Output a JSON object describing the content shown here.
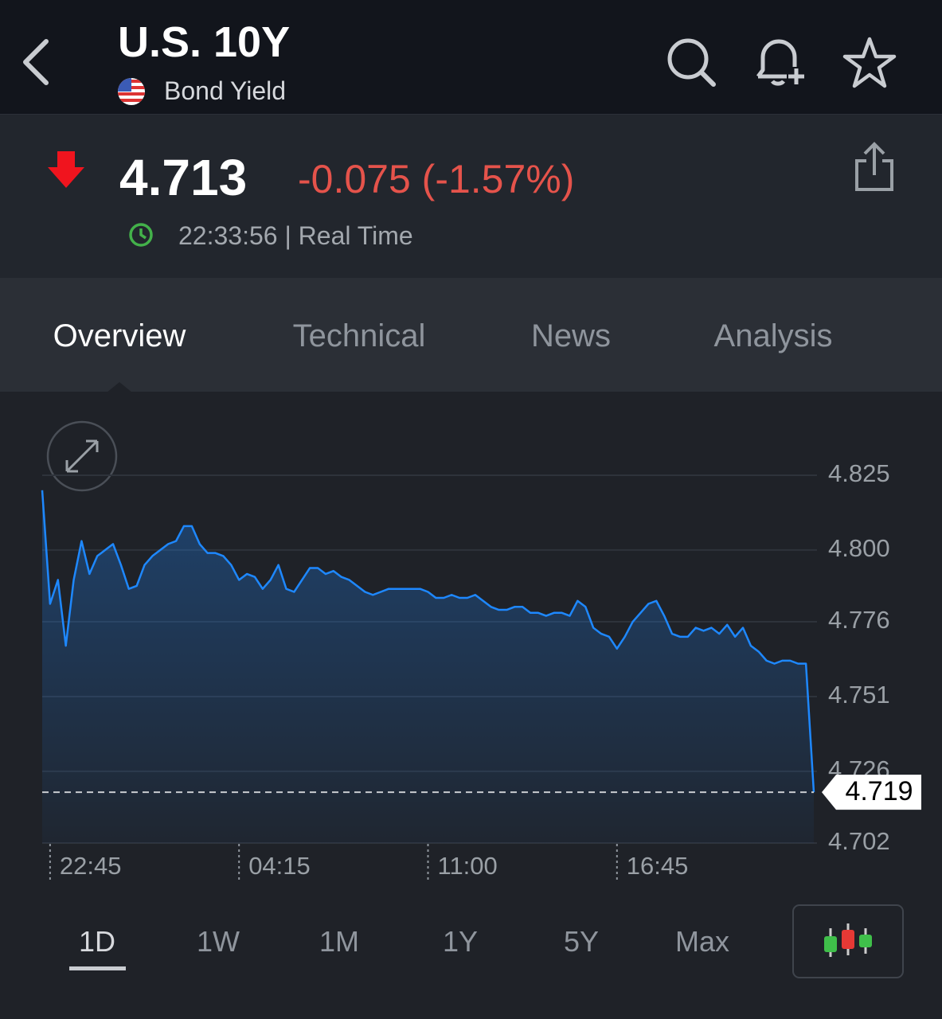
{
  "header": {
    "title": "U.S. 10Y",
    "subtitle": "Bond Yield"
  },
  "quote": {
    "price": "4.713",
    "change": "-0.075 (-1.57%)",
    "time": "22:33:56 | Real Time"
  },
  "tabs": [
    "Overview",
    "Technical",
    "News",
    "Analysis"
  ],
  "chart_data": {
    "type": "line",
    "color": "#1e88ff",
    "grid": true,
    "categories": [
      null,
      "22:45",
      null,
      null,
      null,
      null,
      null,
      null,
      null,
      null,
      null,
      null,
      null,
      null,
      null,
      null,
      null,
      null,
      null,
      null,
      null,
      null,
      null,
      null,
      null,
      "04:15",
      null,
      null,
      null,
      null,
      null,
      null,
      null,
      null,
      null,
      null,
      null,
      null,
      null,
      null,
      null,
      null,
      null,
      null,
      null,
      null,
      null,
      null,
      null,
      "11:00",
      null,
      null,
      null,
      null,
      null,
      null,
      null,
      null,
      null,
      null,
      null,
      null,
      null,
      null,
      null,
      null,
      null,
      null,
      null,
      null,
      null,
      null,
      null,
      "16:45",
      null,
      null,
      null,
      null,
      null,
      null,
      null,
      null,
      null,
      null,
      null,
      null,
      null,
      null,
      null,
      null,
      null,
      null,
      null,
      null,
      null,
      null,
      null,
      null,
      null
    ],
    "values": [
      4.82,
      4.782,
      4.79,
      4.768,
      4.79,
      4.803,
      4.792,
      4.798,
      4.8,
      4.802,
      4.795,
      4.787,
      4.788,
      4.795,
      4.798,
      4.8,
      4.802,
      4.803,
      4.808,
      4.808,
      4.802,
      4.799,
      4.799,
      4.798,
      4.795,
      4.79,
      4.792,
      4.791,
      4.787,
      4.79,
      4.795,
      4.787,
      4.786,
      4.79,
      4.794,
      4.794,
      4.792,
      4.793,
      4.791,
      4.79,
      4.788,
      4.786,
      4.785,
      4.786,
      4.787,
      4.787,
      4.787,
      4.787,
      4.787,
      4.786,
      4.784,
      4.784,
      4.785,
      4.784,
      4.784,
      4.785,
      4.783,
      4.781,
      4.78,
      4.78,
      4.781,
      4.781,
      4.779,
      4.779,
      4.778,
      4.779,
      4.779,
      4.778,
      4.783,
      4.781,
      4.774,
      4.772,
      4.771,
      4.767,
      4.771,
      4.776,
      4.779,
      4.782,
      4.783,
      4.778,
      4.772,
      4.771,
      4.771,
      4.774,
      4.773,
      4.774,
      4.772,
      4.775,
      4.771,
      4.774,
      4.768,
      4.766,
      4.763,
      4.762,
      4.763,
      4.763,
      4.762,
      4.762,
      4.719
    ],
    "ylim": [
      4.702,
      4.825
    ],
    "yticks": [
      4.702,
      4.726,
      4.751,
      4.776,
      {
        "value": 4.8,
        "label": "4.800"
      },
      4.825
    ]
  },
  "ranges": [
    "1D",
    "1W",
    "1M",
    "1Y",
    "5Y",
    "Max"
  ]
}
